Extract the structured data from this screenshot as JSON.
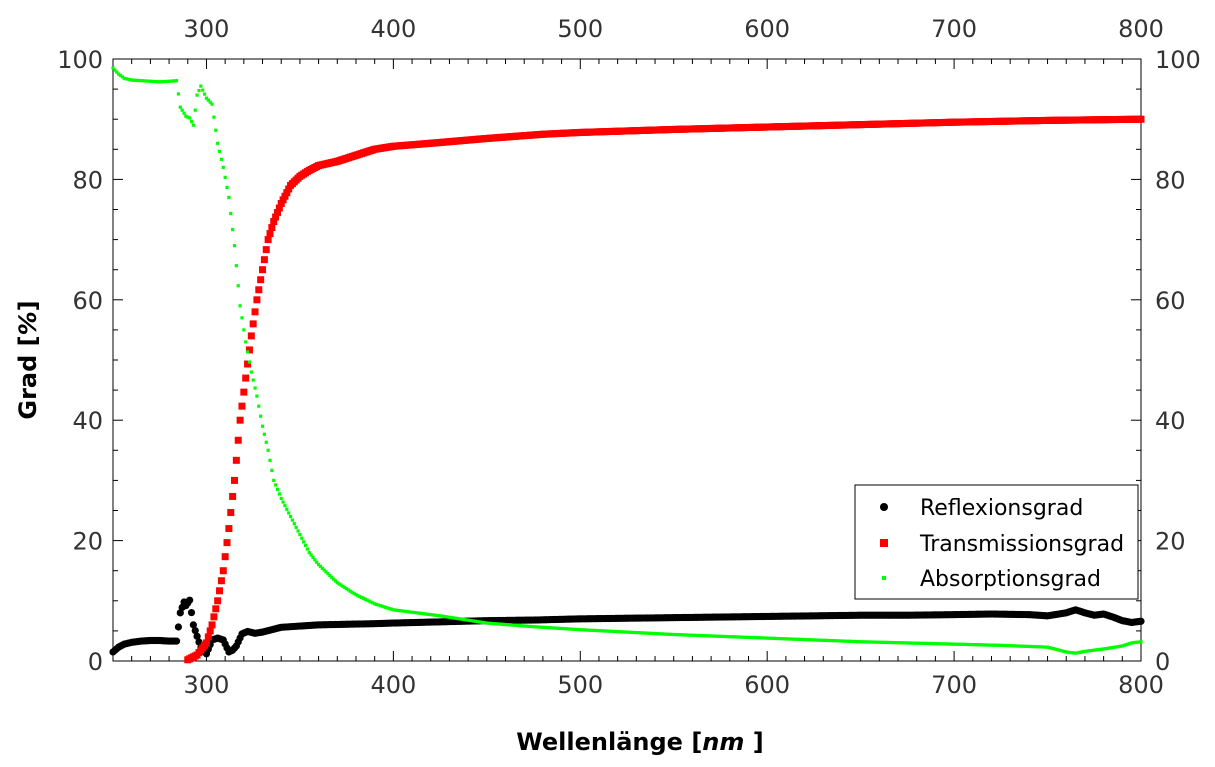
{
  "chart_data": {
    "type": "scatter",
    "xlabel_main": "Wellenlänge [",
    "xlabel_unit": "nm",
    "xlabel_end": " ]",
    "ylabel_main": "Grad [",
    "ylabel_unit": "%",
    "ylabel_end": "]",
    "xlim": [
      250,
      800
    ],
    "ylim": [
      0,
      100
    ],
    "x_ticks": [
      "300",
      "400",
      "500",
      "600",
      "700",
      "800"
    ],
    "y_ticks": [
      "0",
      "20",
      "40",
      "60",
      "80",
      "100"
    ],
    "grid": false,
    "legend_position": "bottom-right",
    "series": [
      {
        "name": "Reflexionsgrad",
        "marker": "circle",
        "color": "#000000",
        "points": [
          [
            250,
            1.5
          ],
          [
            253,
            2.3
          ],
          [
            256,
            2.8
          ],
          [
            260,
            3.1
          ],
          [
            265,
            3.3
          ],
          [
            270,
            3.4
          ],
          [
            275,
            3.4
          ],
          [
            280,
            3.3
          ],
          [
            284,
            3.3
          ],
          [
            286,
            8
          ],
          [
            288,
            9.8
          ],
          [
            289,
            9.2
          ],
          [
            291,
            10.1
          ],
          [
            293,
            6
          ],
          [
            297,
            2.2
          ],
          [
            300,
            1.2
          ],
          [
            303,
            3.5
          ],
          [
            306,
            3.8
          ],
          [
            309,
            3.5
          ],
          [
            312,
            1.5
          ],
          [
            314,
            1.8
          ],
          [
            316,
            2.5
          ],
          [
            319,
            4.5
          ],
          [
            322,
            4.9
          ],
          [
            326,
            4.6
          ],
          [
            330,
            4.8
          ],
          [
            335,
            5.2
          ],
          [
            340,
            5.6
          ],
          [
            350,
            5.8
          ],
          [
            360,
            6.0
          ],
          [
            375,
            6.1
          ],
          [
            390,
            6.2
          ],
          [
            400,
            6.3
          ],
          [
            425,
            6.5
          ],
          [
            450,
            6.7
          ],
          [
            475,
            6.8
          ],
          [
            500,
            7.0
          ],
          [
            525,
            7.1
          ],
          [
            550,
            7.2
          ],
          [
            575,
            7.3
          ],
          [
            600,
            7.4
          ],
          [
            625,
            7.5
          ],
          [
            650,
            7.6
          ],
          [
            675,
            7.6
          ],
          [
            700,
            7.7
          ],
          [
            720,
            7.8
          ],
          [
            740,
            7.7
          ],
          [
            750,
            7.5
          ],
          [
            760,
            8.0
          ],
          [
            765,
            8.5
          ],
          [
            770,
            8.0
          ],
          [
            775,
            7.6
          ],
          [
            780,
            7.8
          ],
          [
            785,
            7.3
          ],
          [
            790,
            6.7
          ],
          [
            795,
            6.4
          ],
          [
            800,
            6.6
          ]
        ]
      },
      {
        "name": "Transmissionsgrad",
        "marker": "square",
        "color": "#ff0000",
        "points": [
          [
            290,
            0.2
          ],
          [
            295,
            1.0
          ],
          [
            300,
            3.0
          ],
          [
            303,
            6.0
          ],
          [
            306,
            10.0
          ],
          [
            309,
            15.0
          ],
          [
            312,
            22.0
          ],
          [
            315,
            30.0
          ],
          [
            318,
            40.0
          ],
          [
            321,
            47.0
          ],
          [
            324,
            54.0
          ],
          [
            327,
            60.0
          ],
          [
            330,
            65.0
          ],
          [
            333,
            70.0
          ],
          [
            336,
            73.0
          ],
          [
            340,
            76.0
          ],
          [
            345,
            79.0
          ],
          [
            350,
            80.5
          ],
          [
            355,
            81.5
          ],
          [
            360,
            82.3
          ],
          [
            370,
            83.0
          ],
          [
            380,
            84.0
          ],
          [
            390,
            85.0
          ],
          [
            400,
            85.5
          ],
          [
            420,
            86.0
          ],
          [
            450,
            86.8
          ],
          [
            480,
            87.5
          ],
          [
            500,
            87.8
          ],
          [
            550,
            88.3
          ],
          [
            600,
            88.7
          ],
          [
            650,
            89.1
          ],
          [
            700,
            89.5
          ],
          [
            750,
            89.8
          ],
          [
            800,
            90.0
          ]
        ]
      },
      {
        "name": "Absorptionsgrad",
        "marker": "small-square",
        "color": "#00ff00",
        "points": [
          [
            250,
            98.5
          ],
          [
            253,
            97.5
          ],
          [
            256,
            96.8
          ],
          [
            260,
            96.5
          ],
          [
            265,
            96.4
          ],
          [
            270,
            96.3
          ],
          [
            275,
            96.2
          ],
          [
            280,
            96.3
          ],
          [
            284,
            96.4
          ],
          [
            286,
            92
          ],
          [
            288,
            91
          ],
          [
            289,
            90.5
          ],
          [
            291,
            90.2
          ],
          [
            293,
            89
          ],
          [
            295,
            94
          ],
          [
            297,
            95.5
          ],
          [
            300,
            93.5
          ],
          [
            303,
            92.5
          ],
          [
            306,
            86
          ],
          [
            309,
            82
          ],
          [
            312,
            77
          ],
          [
            315,
            69
          ],
          [
            318,
            59
          ],
          [
            321,
            53
          ],
          [
            324,
            48
          ],
          [
            327,
            44
          ],
          [
            330,
            39
          ],
          [
            333,
            35
          ],
          [
            336,
            30
          ],
          [
            340,
            27
          ],
          [
            345,
            24
          ],
          [
            350,
            21
          ],
          [
            355,
            18
          ],
          [
            360,
            16
          ],
          [
            370,
            13
          ],
          [
            380,
            11
          ],
          [
            390,
            9.5
          ],
          [
            400,
            8.5
          ],
          [
            425,
            7.5
          ],
          [
            450,
            6.3
          ],
          [
            475,
            5.7
          ],
          [
            500,
            5.2
          ],
          [
            525,
            4.8
          ],
          [
            550,
            4.4
          ],
          [
            575,
            4.1
          ],
          [
            600,
            3.8
          ],
          [
            625,
            3.5
          ],
          [
            650,
            3.2
          ],
          [
            675,
            3.0
          ],
          [
            700,
            2.8
          ],
          [
            725,
            2.6
          ],
          [
            750,
            2.3
          ],
          [
            760,
            1.5
          ],
          [
            765,
            1.3
          ],
          [
            770,
            1.6
          ],
          [
            780,
            2.0
          ],
          [
            790,
            2.5
          ],
          [
            795,
            3.0
          ],
          [
            800,
            3.2
          ]
        ]
      }
    ]
  }
}
